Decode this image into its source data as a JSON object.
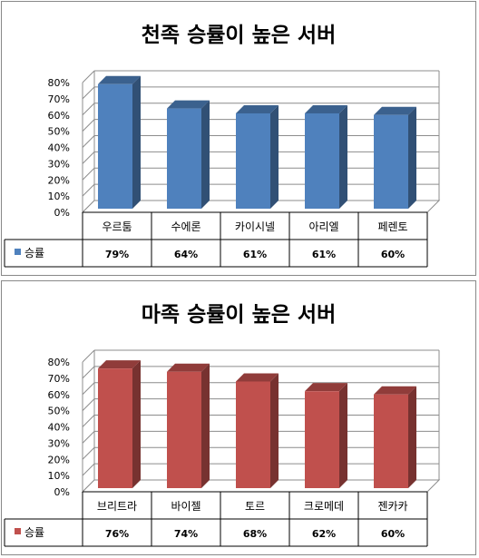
{
  "chart_data": [
    {
      "type": "bar",
      "title": "천족 승률이 높은 서버",
      "categories": [
        "우르툼",
        "수에론",
        "카이시넬",
        "아리엘",
        "페렌토"
      ],
      "series": [
        {
          "name": "승률",
          "values": [
            79,
            64,
            61,
            61,
            60
          ],
          "labels": [
            "79%",
            "64%",
            "61%",
            "61%",
            "60%"
          ]
        }
      ],
      "ylim": [
        0,
        80
      ],
      "yticks": [
        "0%",
        "10%",
        "20%",
        "30%",
        "40%",
        "50%",
        "60%",
        "70%",
        "80%"
      ],
      "grid": true,
      "three_d": true,
      "legend": "data-table",
      "color": "#4F81BD"
    },
    {
      "type": "bar",
      "title": "마족 승률이 높은 서버",
      "categories": [
        "브리트라",
        "바이젤",
        "토르",
        "크로메데",
        "젠카카"
      ],
      "series": [
        {
          "name": "승률",
          "values": [
            76,
            74,
            68,
            62,
            60
          ],
          "labels": [
            "76%",
            "74%",
            "68%",
            "62%",
            "60%"
          ]
        }
      ],
      "ylim": [
        0,
        80
      ],
      "yticks": [
        "0%",
        "10%",
        "20%",
        "30%",
        "40%",
        "50%",
        "60%",
        "70%",
        "80%"
      ],
      "grid": true,
      "three_d": true,
      "legend": "data-table",
      "color": "#C0504D"
    }
  ]
}
